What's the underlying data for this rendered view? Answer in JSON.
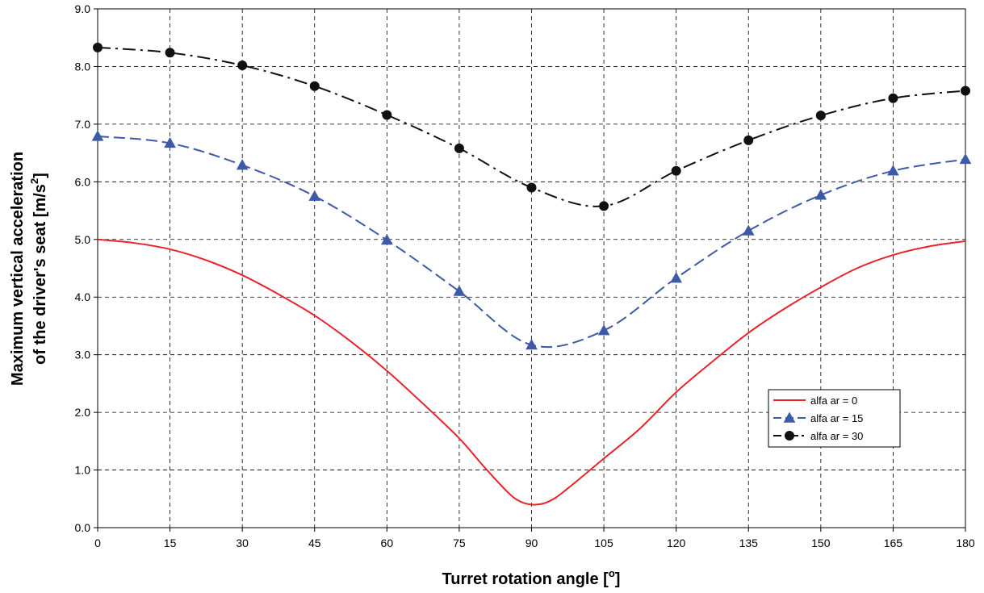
{
  "chart_data": {
    "type": "line",
    "xlabel": "Turret rotation angle [o]",
    "xlabel_parts": {
      "main": "Turret rotation angle [",
      "sup": "o",
      "end": "]"
    },
    "ylabel": "Maximum vertical acceleration of the driver's seat [m/s2]",
    "ylabel_line1": "Maximum vertical acceleration",
    "ylabel_line2_parts": {
      "main": "of the driver's seat  [m/s",
      "sup": "2",
      "end": "]"
    },
    "xlim": [
      0,
      180
    ],
    "ylim": [
      0,
      9
    ],
    "xticks": [
      0,
      15,
      30,
      45,
      60,
      75,
      90,
      105,
      120,
      135,
      150,
      165,
      180
    ],
    "xtick_labels": [
      "0",
      "15",
      "30",
      "45",
      "60",
      "75",
      "90",
      "105",
      "120",
      "135",
      "150",
      "165",
      "180"
    ],
    "yticks": [
      0,
      1,
      2,
      3,
      4,
      5,
      6,
      7,
      8,
      9
    ],
    "ytick_labels": [
      "0.0",
      "1.0",
      "2.0",
      "3.0",
      "4.0",
      "5.0",
      "6.0",
      "7.0",
      "8.0",
      "9.0"
    ],
    "grid": true,
    "legend_position": "right",
    "series": [
      {
        "name": "alfa ar = 0",
        "color": "#e8232a",
        "dash": "solid",
        "marker": "none",
        "x": [
          0,
          7.5,
          15,
          22.5,
          30,
          37.5,
          45,
          52.5,
          60,
          67.5,
          75,
          80,
          85,
          87.5,
          90,
          92.5,
          95,
          97.5,
          100,
          105,
          112.5,
          120,
          127.5,
          135,
          142.5,
          150,
          157.5,
          165,
          172.5,
          180
        ],
        "y": [
          5.0,
          4.94,
          4.83,
          4.64,
          4.38,
          4.05,
          3.68,
          3.23,
          2.72,
          2.15,
          1.55,
          1.07,
          0.62,
          0.46,
          0.4,
          0.42,
          0.52,
          0.68,
          0.85,
          1.2,
          1.72,
          2.35,
          2.88,
          3.38,
          3.8,
          4.17,
          4.5,
          4.73,
          4.88,
          4.97
        ]
      },
      {
        "name": "alfa ar = 15",
        "color": "#3d5aa8",
        "dash": "dashed",
        "marker": "triangle",
        "x": [
          0,
          15,
          30,
          45,
          60,
          75,
          90,
          105,
          120,
          135,
          150,
          165,
          180
        ],
        "y": [
          6.79,
          6.67,
          6.29,
          5.75,
          4.99,
          4.1,
          3.17,
          3.42,
          4.33,
          5.15,
          5.77,
          6.19,
          6.39
        ]
      },
      {
        "name": "alfa ar = 30",
        "color": "#111111",
        "dash": "dashdot",
        "marker": "circle",
        "x": [
          0,
          15,
          30,
          45,
          60,
          75,
          90,
          105,
          120,
          135,
          150,
          165,
          180
        ],
        "y": [
          8.33,
          8.24,
          8.02,
          7.66,
          7.16,
          6.58,
          5.9,
          5.58,
          6.19,
          6.72,
          7.15,
          7.45,
          7.58
        ]
      }
    ]
  }
}
